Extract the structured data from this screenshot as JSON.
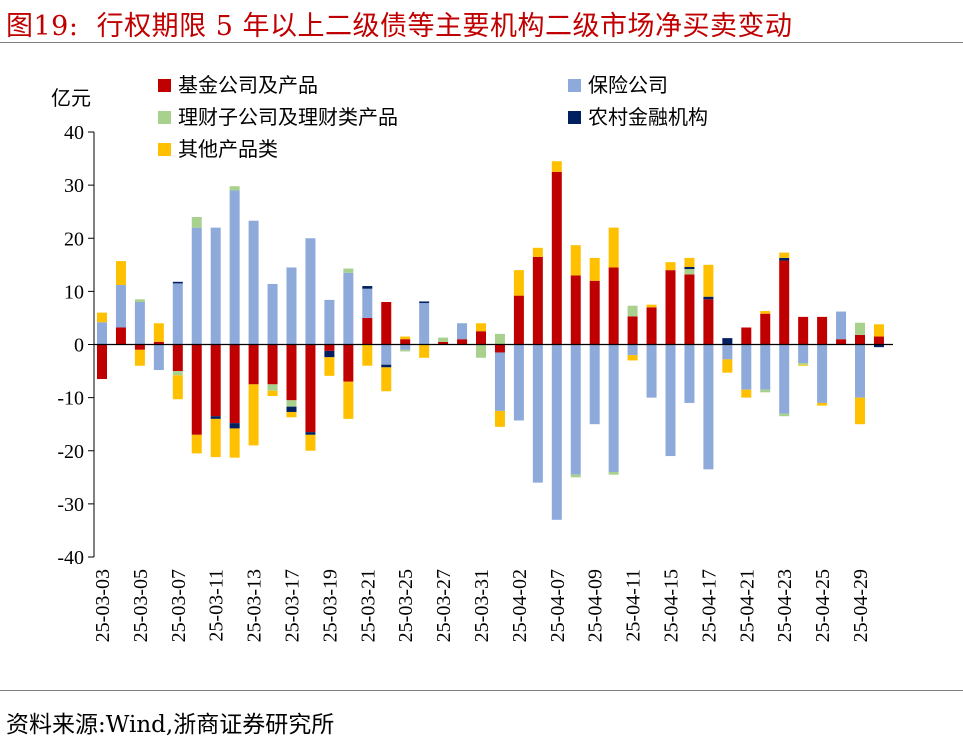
{
  "header": {
    "figure_label": "图19:",
    "title": "行权期限 5 年以上二级债等主要机构二级市场净买卖变动"
  },
  "source": "资料来源:Wind,浙商证券研究所",
  "colors": {
    "fund": "#c00000",
    "insurance": "#8eaadb",
    "wealth": "#a9d18e",
    "rural": "#002060",
    "other": "#ffc000",
    "axis": "#000000",
    "title": "#c00000"
  },
  "chart_data": {
    "type": "bar",
    "stacked": true,
    "title": "行权期限 5 年以上二级债等主要机构二级市场净买卖变动",
    "ylabel": "亿元",
    "xlabel": "",
    "ylim": [
      -40,
      40
    ],
    "yticks": [
      40,
      30,
      20,
      10,
      0,
      -10,
      -20,
      -30,
      -40
    ],
    "legend_position": "top",
    "categories": [
      "25-03-03",
      "25-03-04",
      "25-03-05",
      "25-03-06",
      "25-03-07",
      "25-03-10",
      "25-03-11",
      "25-03-12",
      "25-03-13",
      "25-03-14",
      "25-03-17",
      "25-03-18",
      "25-03-19",
      "25-03-20",
      "25-03-21",
      "25-03-24",
      "25-03-25",
      "25-03-26",
      "25-03-27",
      "25-03-28",
      "25-03-31",
      "25-04-01",
      "25-04-02",
      "25-04-03",
      "25-04-07",
      "25-04-08",
      "25-04-09",
      "25-04-10",
      "25-04-11",
      "25-04-14",
      "25-04-15",
      "25-04-16",
      "25-04-17",
      "25-04-18",
      "25-04-21",
      "25-04-22",
      "25-04-23",
      "25-04-24",
      "25-04-25",
      "25-04-28",
      "25-04-29",
      "25-04-30"
    ],
    "xtick_labels": [
      "25-03-03",
      "25-03-05",
      "25-03-07",
      "25-03-11",
      "25-03-13",
      "25-03-17",
      "25-03-19",
      "25-03-21",
      "25-03-25",
      "25-03-27",
      "25-03-31",
      "25-04-02",
      "25-04-07",
      "25-04-09",
      "25-04-11",
      "25-04-15",
      "25-04-17",
      "25-04-21",
      "25-04-23",
      "25-04-25",
      "25-04-29"
    ],
    "series": [
      {
        "name": "基金公司及产品",
        "color": "#c00000",
        "values": [
          -6.5,
          3.2,
          -1.0,
          0.5,
          -5.0,
          -17.0,
          -13.5,
          -14.8,
          -7.5,
          -7.5,
          -10.5,
          -16.5,
          -1.2,
          -7.0,
          5.0,
          8.0,
          1.0,
          0.0,
          0.5,
          1.0,
          2.5,
          -1.5,
          9.2,
          16.5,
          32.5,
          13.0,
          12.0,
          14.5,
          5.3,
          7.0,
          14.0,
          13.2,
          8.5,
          0.0,
          3.2,
          5.8,
          15.8,
          5.2,
          5.2,
          1.0,
          1.8,
          1.5
        ]
      },
      {
        "name": "保险公司",
        "color": "#8eaadb",
        "values": [
          4.2,
          8.0,
          8.0,
          -4.8,
          11.5,
          22.0,
          22.0,
          29.0,
          23.3,
          11.4,
          14.5,
          20.0,
          8.4,
          13.5,
          5.5,
          -3.8,
          -1.0,
          7.8,
          0.0,
          3.0,
          0.0,
          -11.0,
          -14.3,
          -26.0,
          -33.0,
          -24.5,
          -15.0,
          -24.0,
          -2.0,
          -10.0,
          -21.0,
          -11.0,
          -23.5,
          -2.8,
          -8.5,
          -8.5,
          -13.0,
          -3.5,
          -11.0,
          5.2,
          -10.0,
          0.0
        ]
      },
      {
        "name": "理财子公司及理财类产品",
        "color": "#a9d18e",
        "values": [
          0.0,
          0.0,
          0.5,
          0.0,
          -0.8,
          2.0,
          0.0,
          0.8,
          0.0,
          -1.2,
          -1.2,
          0.0,
          0.0,
          0.8,
          0.0,
          0.0,
          -0.3,
          0.0,
          0.8,
          0.0,
          -2.5,
          2.0,
          0.0,
          0.0,
          0.0,
          -0.5,
          0.0,
          -0.5,
          2.0,
          0.0,
          0.0,
          1.0,
          0.0,
          0.0,
          0.0,
          -0.5,
          -0.5,
          -0.3,
          0.0,
          0.0,
          2.3,
          0.0
        ]
      },
      {
        "name": "农村金融机构",
        "color": "#002060",
        "values": [
          0.0,
          0.0,
          0.0,
          0.0,
          0.3,
          0.0,
          -0.5,
          -1.0,
          0.0,
          0.0,
          -1.0,
          -0.5,
          -1.2,
          0.0,
          0.5,
          -0.5,
          0.0,
          0.3,
          0.0,
          0.0,
          0.0,
          0.0,
          0.0,
          0.0,
          0.0,
          0.0,
          0.0,
          0.0,
          0.0,
          0.0,
          0.0,
          0.4,
          0.5,
          1.2,
          0.0,
          0.0,
          0.5,
          0.0,
          0.0,
          0.0,
          0.0,
          -0.5
        ]
      },
      {
        "name": "其他产品类",
        "color": "#ffc000",
        "values": [
          1.8,
          4.5,
          -3.0,
          3.5,
          -4.5,
          -3.5,
          -7.2,
          -5.5,
          -11.5,
          -1.0,
          -1.0,
          -3.0,
          -3.5,
          -7.0,
          -4.0,
          -4.5,
          0.5,
          -2.5,
          0.0,
          0.0,
          1.5,
          -3.0,
          4.8,
          1.7,
          2.0,
          5.7,
          4.3,
          7.5,
          -1.0,
          0.5,
          1.5,
          1.7,
          6.0,
          -2.5,
          -1.5,
          0.5,
          1.0,
          -0.2,
          -0.5,
          0.0,
          -5.0,
          2.3
        ]
      }
    ]
  }
}
